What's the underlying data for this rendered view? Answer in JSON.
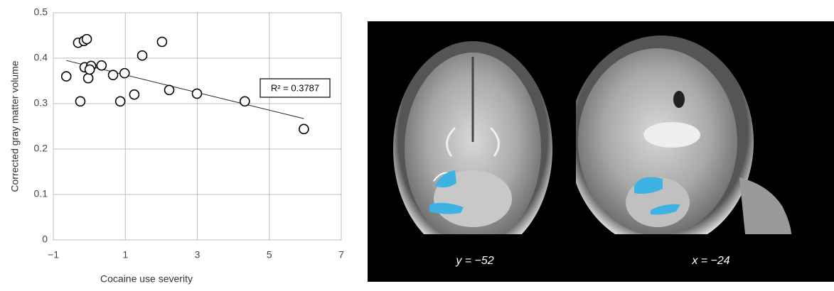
{
  "chart_data": {
    "type": "scatter",
    "x_label": "Cocaine use severity",
    "y_label": "Corrected gray matter volume",
    "x": [
      -0.64,
      -0.31,
      -0.25,
      -0.15,
      -0.07,
      -0.13,
      -0.03,
      0.05,
      0.01,
      0.34,
      0.66,
      0.98,
      0.86,
      1.25,
      1.47,
      2.02,
      2.22,
      2.99,
      4.32,
      5.96
    ],
    "values": [
      0.36,
      0.434,
      0.305,
      0.438,
      0.442,
      0.38,
      0.356,
      0.383,
      0.375,
      0.384,
      0.363,
      0.367,
      0.305,
      0.32,
      0.406,
      0.436,
      0.33,
      0.322,
      0.305,
      0.244
    ],
    "trendline": {
      "x": [
        -0.64,
        5.96
      ],
      "y": [
        0.395,
        0.267
      ]
    },
    "annotation": "R² = 0.3787",
    "xlim": [
      -1,
      7
    ],
    "ylim": [
      0,
      0.5
    ],
    "xticks": [
      {
        "value": -1,
        "label": "−1"
      },
      1,
      3,
      5,
      7
    ],
    "yticks": [
      0,
      0.1,
      0.2,
      0.3,
      0.4,
      0.5
    ],
    "grid": true,
    "color": "#000000"
  },
  "images": [
    {
      "label": "y = −52"
    },
    {
      "label": "x = −24"
    }
  ]
}
